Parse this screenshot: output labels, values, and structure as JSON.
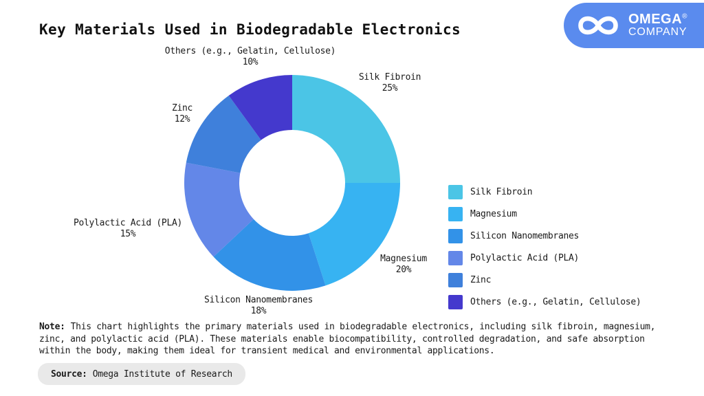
{
  "page": {
    "title": "Key Materials Used in Biodegradable Electronics"
  },
  "logo": {
    "company_name": "OMEGA",
    "registered_mark": "®",
    "company_suffix": "COMPANY",
    "bg_color": "#5A8BEE"
  },
  "chart_data": {
    "type": "pie",
    "subtype": "donut",
    "title": "Key Materials Used in Biodegradable Electronics",
    "unit": "%",
    "direction": "clockwise",
    "start_angle_deg": 0,
    "legend_position": "right",
    "categories": [
      "Silk Fibroin",
      "Magnesium",
      "Silicon Nanomembranes",
      "Polylactic Acid (PLA)",
      "Zinc",
      "Others (e.g., Gelatin, Cellulose)"
    ],
    "values": [
      25,
      20,
      18,
      15,
      12,
      10
    ],
    "colors": [
      "#4BC5E6",
      "#37B3F2",
      "#3292E8",
      "#6387E8",
      "#3F80DB",
      "#4439CD"
    ],
    "slice_labels": [
      {
        "name": "Silk Fibroin",
        "pct": "25%"
      },
      {
        "name": "Magnesium",
        "pct": "20%"
      },
      {
        "name": "Silicon Nanomembranes",
        "pct": "18%"
      },
      {
        "name": "Polylactic Acid (PLA)",
        "pct": "15%"
      },
      {
        "name": "Zinc",
        "pct": "12%"
      },
      {
        "name": "Others (e.g., Gelatin, Cellulose)",
        "pct": "10%"
      }
    ]
  },
  "note": {
    "label": "Note:",
    "text": "This chart highlights the primary materials used in biodegradable electronics, including silk fibroin, magnesium, zinc, and polylactic acid (PLA). These materials enable biocompatibility, controlled degradation, and safe absorption within the body, making them ideal for transient medical and environmental applications."
  },
  "source": {
    "label": "Source:",
    "text": "Omega Institute of Research"
  }
}
